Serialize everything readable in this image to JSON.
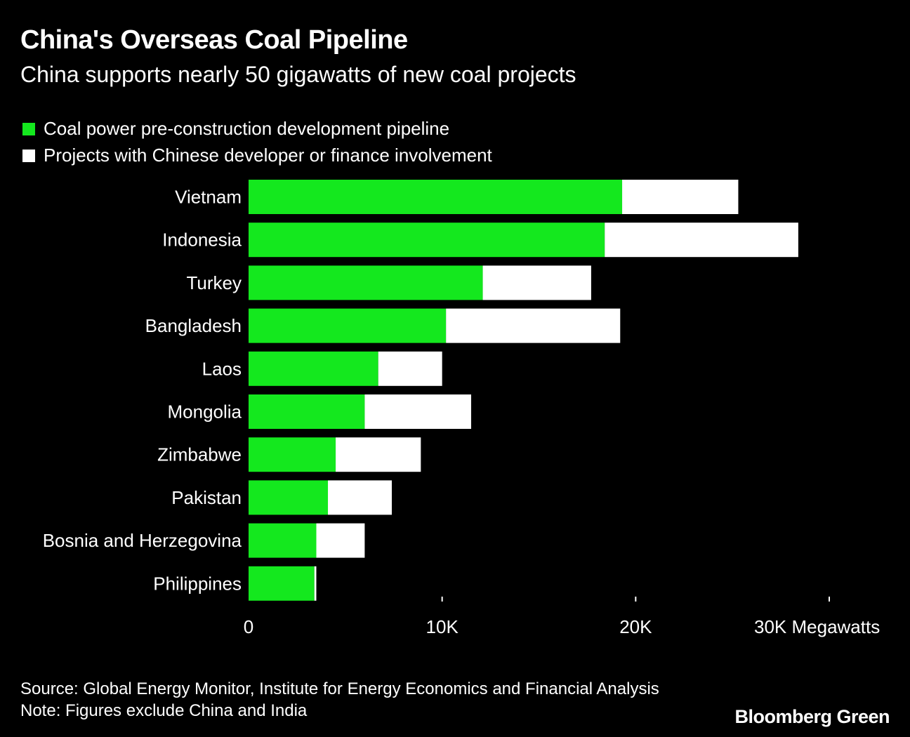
{
  "chart_data": {
    "type": "bar",
    "orientation": "horizontal",
    "stacked": true,
    "title": "China's Overseas Coal Pipeline",
    "subtitle": "China supports nearly 50 gigawatts of new coal projects",
    "categories": [
      "Vietnam",
      "Indonesia",
      "Turkey",
      "Bangladesh",
      "Laos",
      "Mongolia",
      "Zimbabwe",
      "Pakistan",
      "Bosnia and Herzegovina",
      "Philippines"
    ],
    "series": [
      {
        "name": "Coal power pre-construction development pipeline",
        "color": "#14e81e",
        "values": [
          19300,
          18400,
          12100,
          10200,
          6700,
          6000,
          4500,
          4100,
          3500,
          3400
        ]
      },
      {
        "name": "Projects with Chinese developer or finance involvement",
        "color": "#ffffff",
        "values": [
          6000,
          10000,
          5600,
          9000,
          3300,
          5500,
          4400,
          3300,
          2500,
          100
        ]
      }
    ],
    "xlim": [
      0,
      30000
    ],
    "xticks": [
      0,
      10000,
      20000,
      30000
    ],
    "xtick_labels": [
      "0",
      "10K",
      "20K",
      "30K Megawatts"
    ],
    "legend_position": "top-left",
    "grid": false
  },
  "footer": {
    "source": "Source: Global Energy Monitor, Institute for Energy Economics and Financial Analysis",
    "note": "Note: Figures exclude China and India",
    "logo": "Bloomberg Green"
  }
}
